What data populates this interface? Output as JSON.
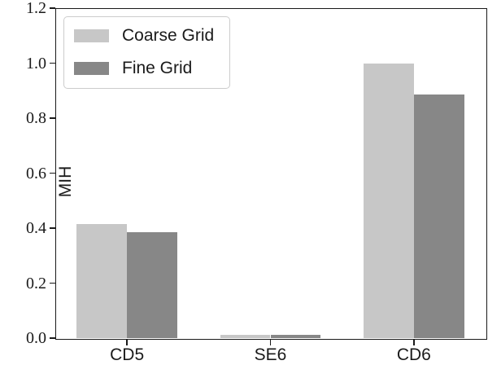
{
  "chart_data": {
    "type": "bar",
    "title": "",
    "categories": [
      "CD5",
      "SE6",
      "CD6"
    ],
    "series": [
      {
        "name": "Coarse Grid",
        "color": "#c7c7c7",
        "values": [
          0.415,
          0.012,
          1.0
        ]
      },
      {
        "name": "Fine Grid",
        "color": "#878787",
        "values": [
          0.385,
          0.011,
          0.885
        ]
      }
    ],
    "xlabel": "",
    "ylabel": "MIH",
    "ylim": [
      0.0,
      1.2
    ],
    "yticks": [
      0.0,
      0.2,
      0.4,
      0.6,
      0.8,
      1.0,
      1.2
    ],
    "ytick_labels": [
      "0.0",
      "0.2",
      "0.4",
      "0.6",
      "0.8",
      "1.0",
      "1.2"
    ],
    "grid": false,
    "legend_position": "upper left",
    "bar_width_fraction": 0.35
  },
  "colors": {
    "background": "#ffffff",
    "spine": "#1a1a1a",
    "text": "#1a1a1a",
    "legend_border": "#cccccc"
  }
}
